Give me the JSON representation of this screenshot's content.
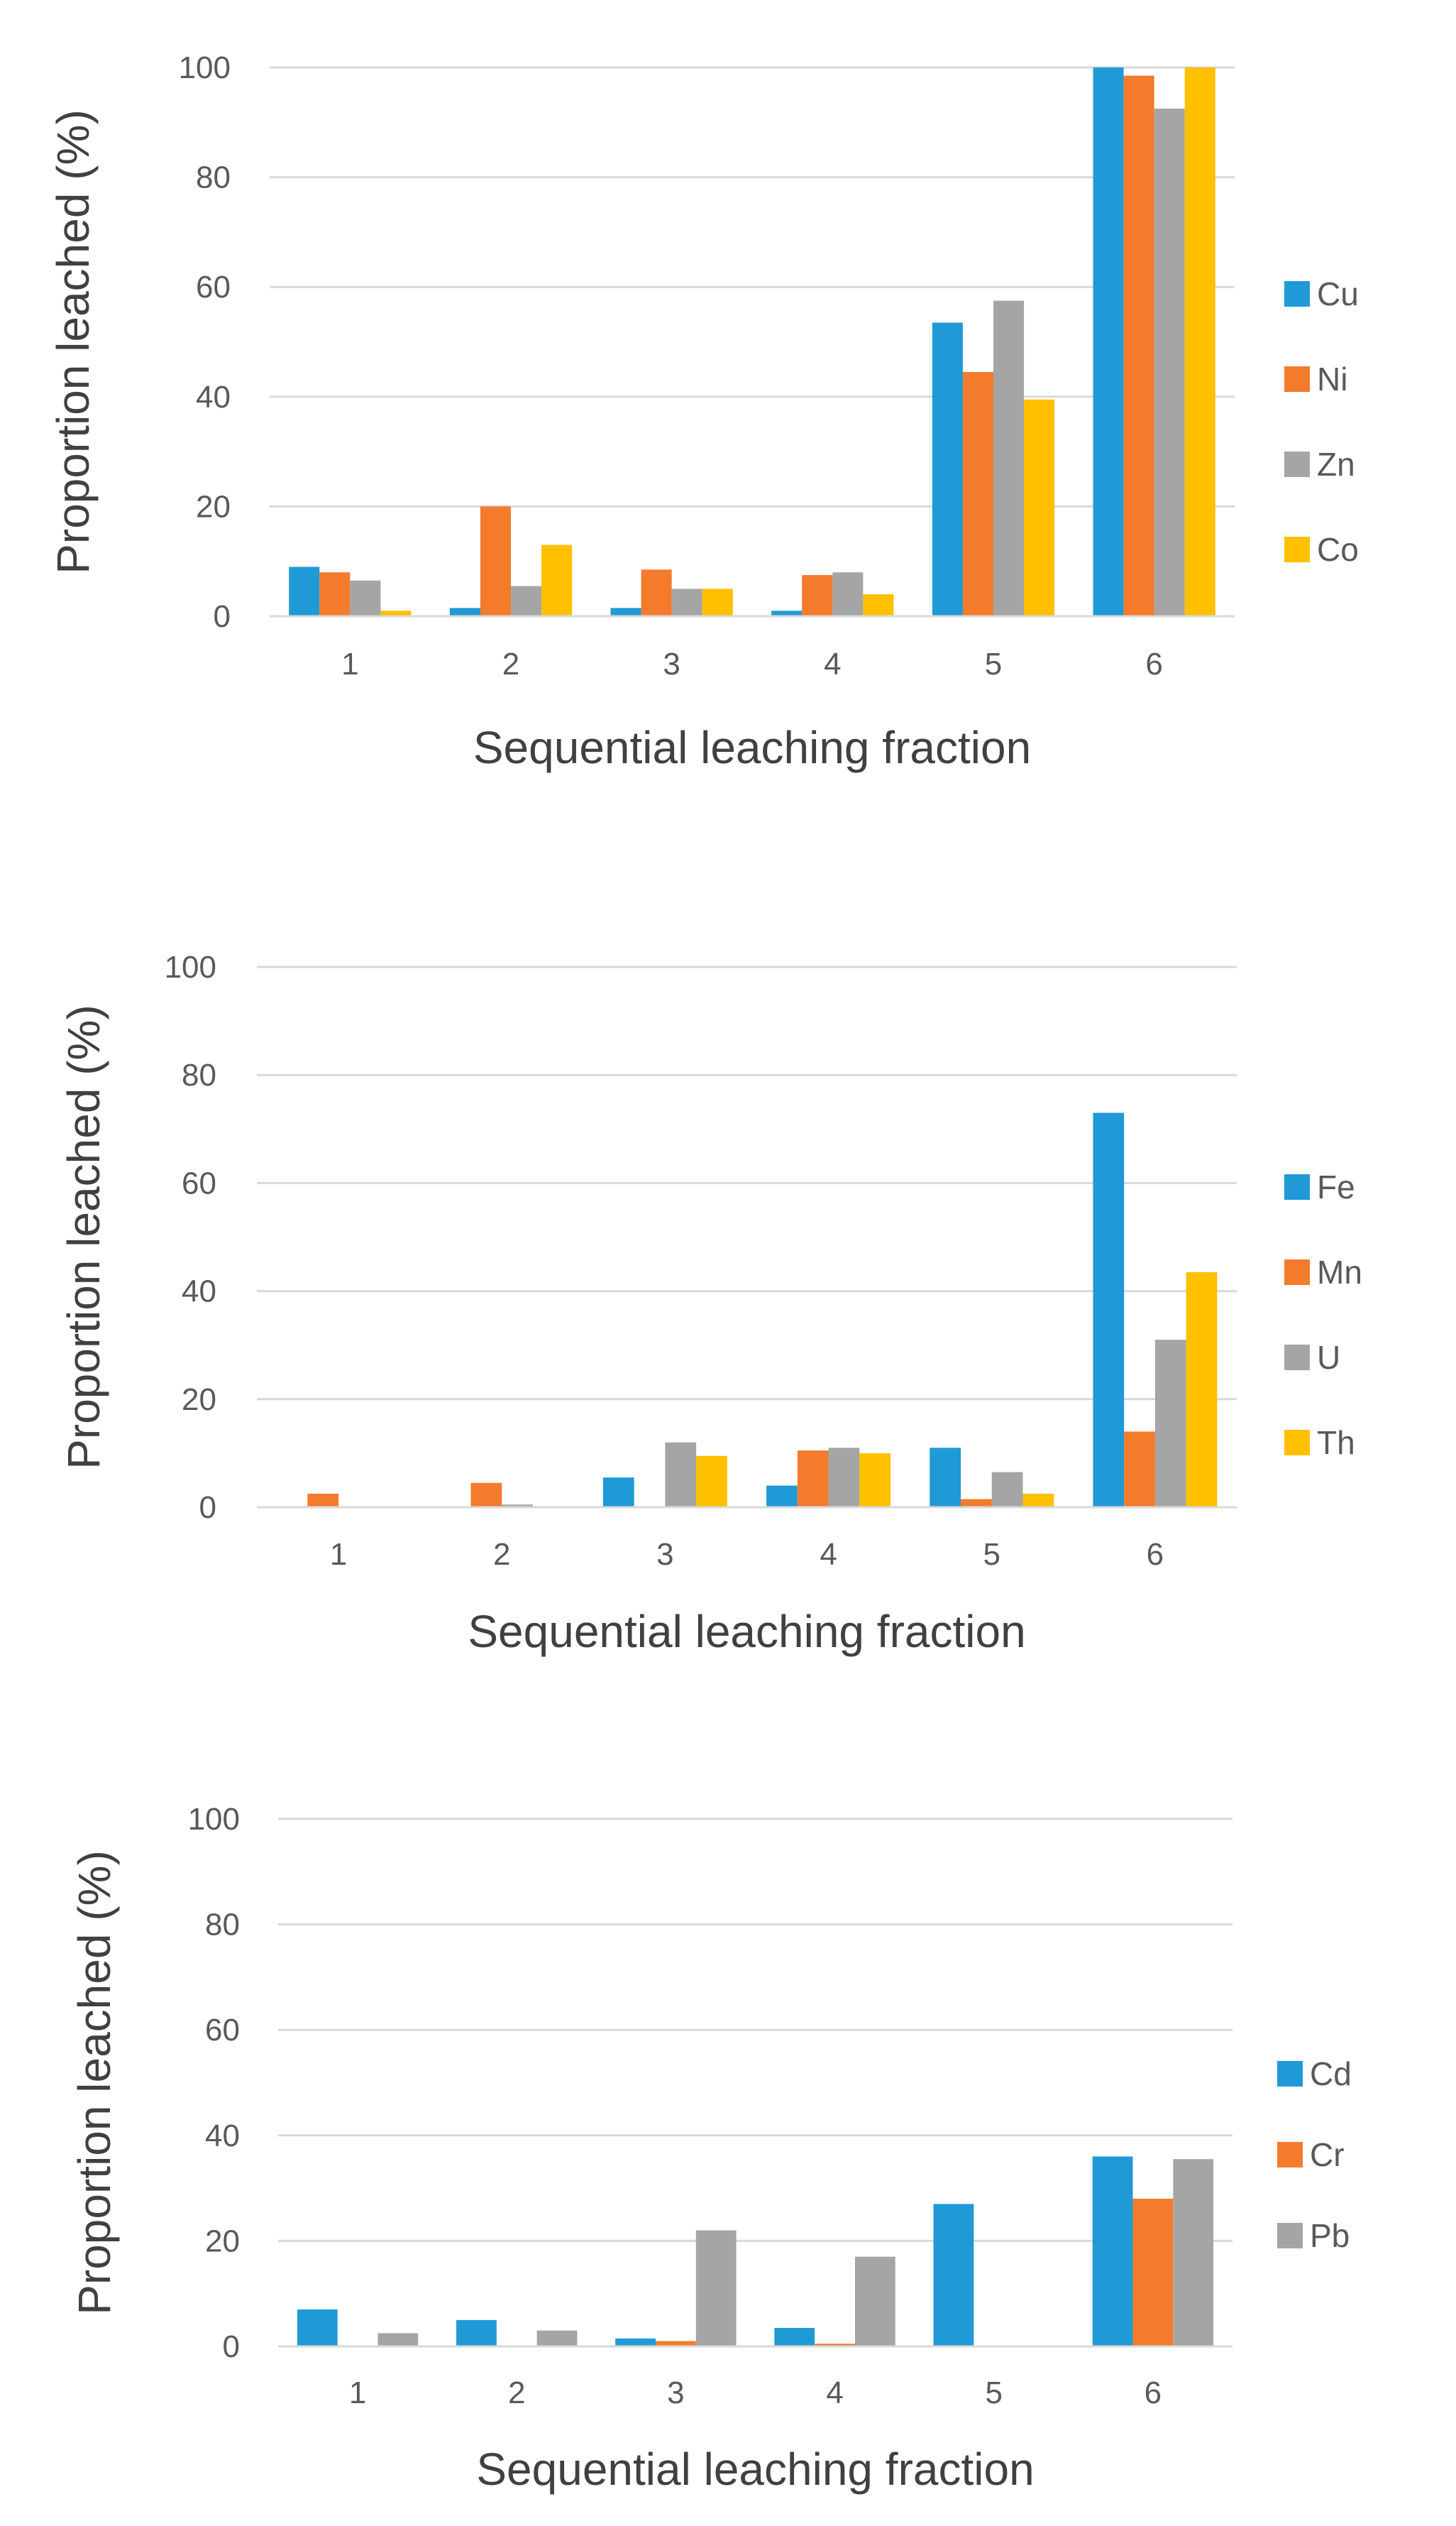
{
  "chart_data": [
    {
      "type": "bar",
      "xlabel": "Sequential leaching fraction",
      "ylabel": "Proportion leached (%)",
      "ylim": [
        0,
        100
      ],
      "yticks": [
        "0",
        "20",
        "40",
        "60",
        "80",
        "100"
      ],
      "grid": true,
      "legend_position": "right",
      "categories": [
        "1",
        "2",
        "3",
        "4",
        "5",
        "6"
      ],
      "series": [
        {
          "name": "Cu",
          "color": "#1f9ad6",
          "values": [
            9,
            1.5,
            1.5,
            1,
            53.5,
            100
          ]
        },
        {
          "name": "Ni",
          "color": "#f47a2c",
          "values": [
            8,
            20,
            8.5,
            7.5,
            44.5,
            98.5
          ]
        },
        {
          "name": "Zn",
          "color": "#a5a5a5",
          "values": [
            6.5,
            5.5,
            5,
            8,
            57.5,
            92.5
          ]
        },
        {
          "name": "Co",
          "color": "#ffc000",
          "values": [
            1,
            13,
            5,
            4,
            39.5,
            100
          ]
        }
      ]
    },
    {
      "type": "bar",
      "xlabel": "Sequential leaching fraction",
      "ylabel": "Proportion leached (%)",
      "ylim": [
        0,
        100
      ],
      "yticks": [
        "0",
        "20",
        "40",
        "60",
        "80",
        "100"
      ],
      "grid": true,
      "legend_position": "right",
      "categories": [
        "1",
        "2",
        "3",
        "4",
        "5",
        "6"
      ],
      "series": [
        {
          "name": "Fe",
          "color": "#1f9ad6",
          "values": [
            0,
            0,
            5.5,
            4,
            11,
            73
          ]
        },
        {
          "name": "Mn",
          "color": "#f47a2c",
          "values": [
            2.5,
            4.5,
            0,
            10.5,
            1.5,
            14
          ]
        },
        {
          "name": "U",
          "color": "#a5a5a5",
          "values": [
            0,
            0.5,
            12,
            11,
            6.5,
            31
          ]
        },
        {
          "name": "Th",
          "color": "#ffc000",
          "values": [
            0,
            0,
            9.5,
            10,
            2.5,
            43.5
          ]
        }
      ]
    },
    {
      "type": "bar",
      "xlabel": "Sequential leaching fraction",
      "ylabel": "Proportion leached (%)",
      "ylim": [
        0,
        100
      ],
      "yticks": [
        "0",
        "20",
        "40",
        "60",
        "80",
        "100"
      ],
      "grid": true,
      "legend_position": "right",
      "categories": [
        "1",
        "2",
        "3",
        "4",
        "5",
        "6"
      ],
      "series": [
        {
          "name": "Cd",
          "color": "#1f9ad6",
          "values": [
            7,
            5,
            1.5,
            3.5,
            27,
            36
          ]
        },
        {
          "name": "Cr",
          "color": "#f47a2c",
          "values": [
            0,
            0,
            1,
            0.5,
            0,
            28
          ]
        },
        {
          "name": "Pb",
          "color": "#a5a5a5",
          "values": [
            2.5,
            3,
            22,
            17,
            0,
            35.5
          ]
        }
      ]
    }
  ]
}
